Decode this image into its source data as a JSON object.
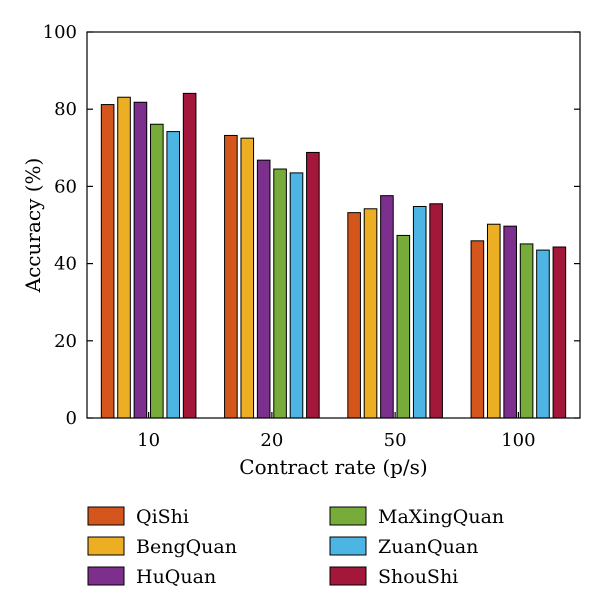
{
  "chart_data": {
    "type": "bar",
    "xlabel": "Contract rate (p/s)",
    "ylabel": "Accuracy (%)",
    "ylim": [
      0,
      100
    ],
    "yticks": [
      0,
      20,
      40,
      60,
      80,
      100
    ],
    "categories": [
      "10",
      "20",
      "50",
      "100"
    ],
    "grid": false,
    "legend_position": "bottom",
    "series": [
      {
        "name": "QiShi",
        "color": "#d4561c",
        "values": [
          81.2,
          73.2,
          53.2,
          45.9
        ]
      },
      {
        "name": "BengQuan",
        "color": "#ecae22",
        "values": [
          83.1,
          72.5,
          54.2,
          50.2
        ]
      },
      {
        "name": "HuQuan",
        "color": "#7c2f8c",
        "values": [
          81.8,
          66.8,
          57.6,
          49.7
        ]
      },
      {
        "name": "MaXingQuan",
        "color": "#77ac3a",
        "values": [
          76.1,
          64.5,
          47.3,
          45.1
        ]
      },
      {
        "name": "ZuanQuan",
        "color": "#4cb5e3",
        "values": [
          74.2,
          63.5,
          54.8,
          43.5
        ]
      },
      {
        "name": "ShouShi",
        "color": "#a2173a",
        "values": [
          84.1,
          68.8,
          55.5,
          44.3
        ]
      }
    ]
  }
}
